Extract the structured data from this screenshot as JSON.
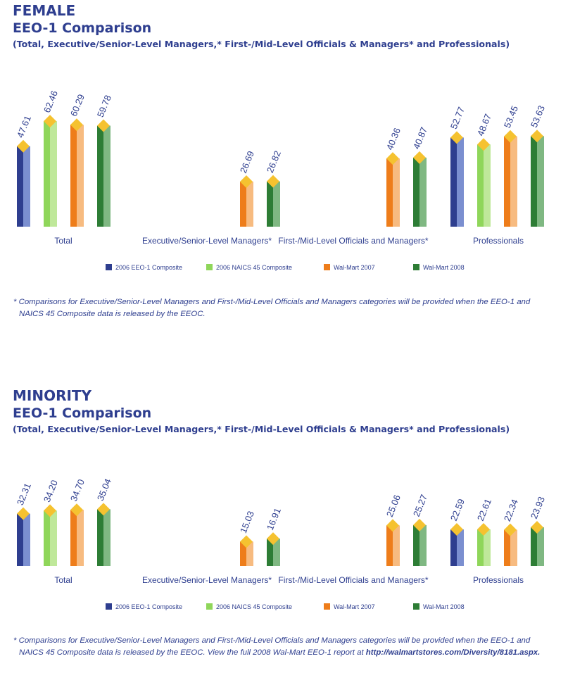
{
  "legend": [
    "2006 EEO-1 Composite",
    "2006 NAICS 45 Composite",
    "Wal-Mart 2007",
    "Wal-Mart 2008"
  ],
  "colors": {
    "heading": "#2e3e8f",
    "series_front": [
      "#2e3e8f",
      "#8fd65a",
      "#ee7d1a",
      "#2d7d35"
    ],
    "series_side": [
      "#7b8fd0",
      "#bfe89a",
      "#f7bb80",
      "#7fb882"
    ],
    "diamond": "#f5c230"
  },
  "female": {
    "title1": "FEMALE",
    "title2": "EEO-1 Comparison",
    "subtitle": "(Total, Executive/Senior-Level Managers,* First-/Mid-Level Officials & Managers* and Professionals)",
    "note_line1": "* Comparisons for Executive/Senior-Level Managers and First-/Mid-Level Officials and Managers categories will be provided when the EEO-1 and",
    "note_line2": "NAICS 45 Composite data is released by the EEOC."
  },
  "minority": {
    "title1": "MINORITY",
    "title2": "EEO-1 Comparison",
    "subtitle": "(Total, Executive/Senior-Level Managers,* First-/Mid-Level Officials & Managers* and Professionals)",
    "note_line1": "* Comparisons for Executive/Senior-Level Managers and First-/Mid-Level Officials and Managers categories will be provided when the EEO-1 and",
    "note_line2": "NAICS 45 Composite data is released by the EEOC. View the full 2008 Wal-Mart EEO-1 report at",
    "note_link": "http://walmartstores.com/Diversity/8181.aspx."
  },
  "chart_data": [
    {
      "type": "bar",
      "categories": [
        "Total",
        "Executive/Senior-Level Managers*",
        "First-/Mid-Level Officials and Managers*",
        "Professionals"
      ],
      "series": [
        {
          "name": "2006 EEO-1 Composite",
          "values": [
            47.61,
            null,
            null,
            52.77
          ],
          "labels": [
            "47.61",
            null,
            null,
            "52.77"
          ]
        },
        {
          "name": "2006 NAICS 45 Composite",
          "values": [
            62.46,
            null,
            null,
            48.67
          ],
          "labels": [
            "62.46",
            null,
            null,
            "48.67"
          ]
        },
        {
          "name": "Wal-Mart 2007",
          "values": [
            60.29,
            26.69,
            40.36,
            53.45
          ],
          "labels": [
            "60.29",
            "26.69",
            "40.36",
            "53.45"
          ]
        },
        {
          "name": "Wal-Mart 2008",
          "values": [
            59.78,
            26.82,
            40.87,
            53.63
          ],
          "labels": [
            "59.78",
            "26.82",
            "40.87",
            "53.63"
          ]
        }
      ],
      "ylim": [
        0,
        70
      ],
      "legend_position": "bottom"
    },
    {
      "type": "bar",
      "categories": [
        "Total",
        "Executive/Senior-Level Managers*",
        "First-/Mid-Level Officials and Managers*",
        "Professionals"
      ],
      "series": [
        {
          "name": "2006 EEO-1 Composite",
          "values": [
            32.31,
            null,
            null,
            22.59
          ],
          "labels": [
            "32.31",
            null,
            null,
            "22.59"
          ]
        },
        {
          "name": "2006 NAICS 45 Composite",
          "values": [
            34.2,
            null,
            null,
            22.61
          ],
          "labels": [
            "34.20",
            null,
            null,
            "22.61"
          ]
        },
        {
          "name": "Wal-Mart 2007",
          "values": [
            34.7,
            15.03,
            25.06,
            22.34
          ],
          "labels": [
            "34.70",
            "15.03",
            "25.06",
            "22.34"
          ]
        },
        {
          "name": "Wal-Mart 2008",
          "values": [
            35.04,
            16.91,
            25.27,
            23.93
          ],
          "labels": [
            "35.04",
            "16.91",
            "25.27",
            "23.93"
          ]
        }
      ],
      "ylim": [
        0,
        50
      ],
      "legend_position": "bottom"
    }
  ]
}
